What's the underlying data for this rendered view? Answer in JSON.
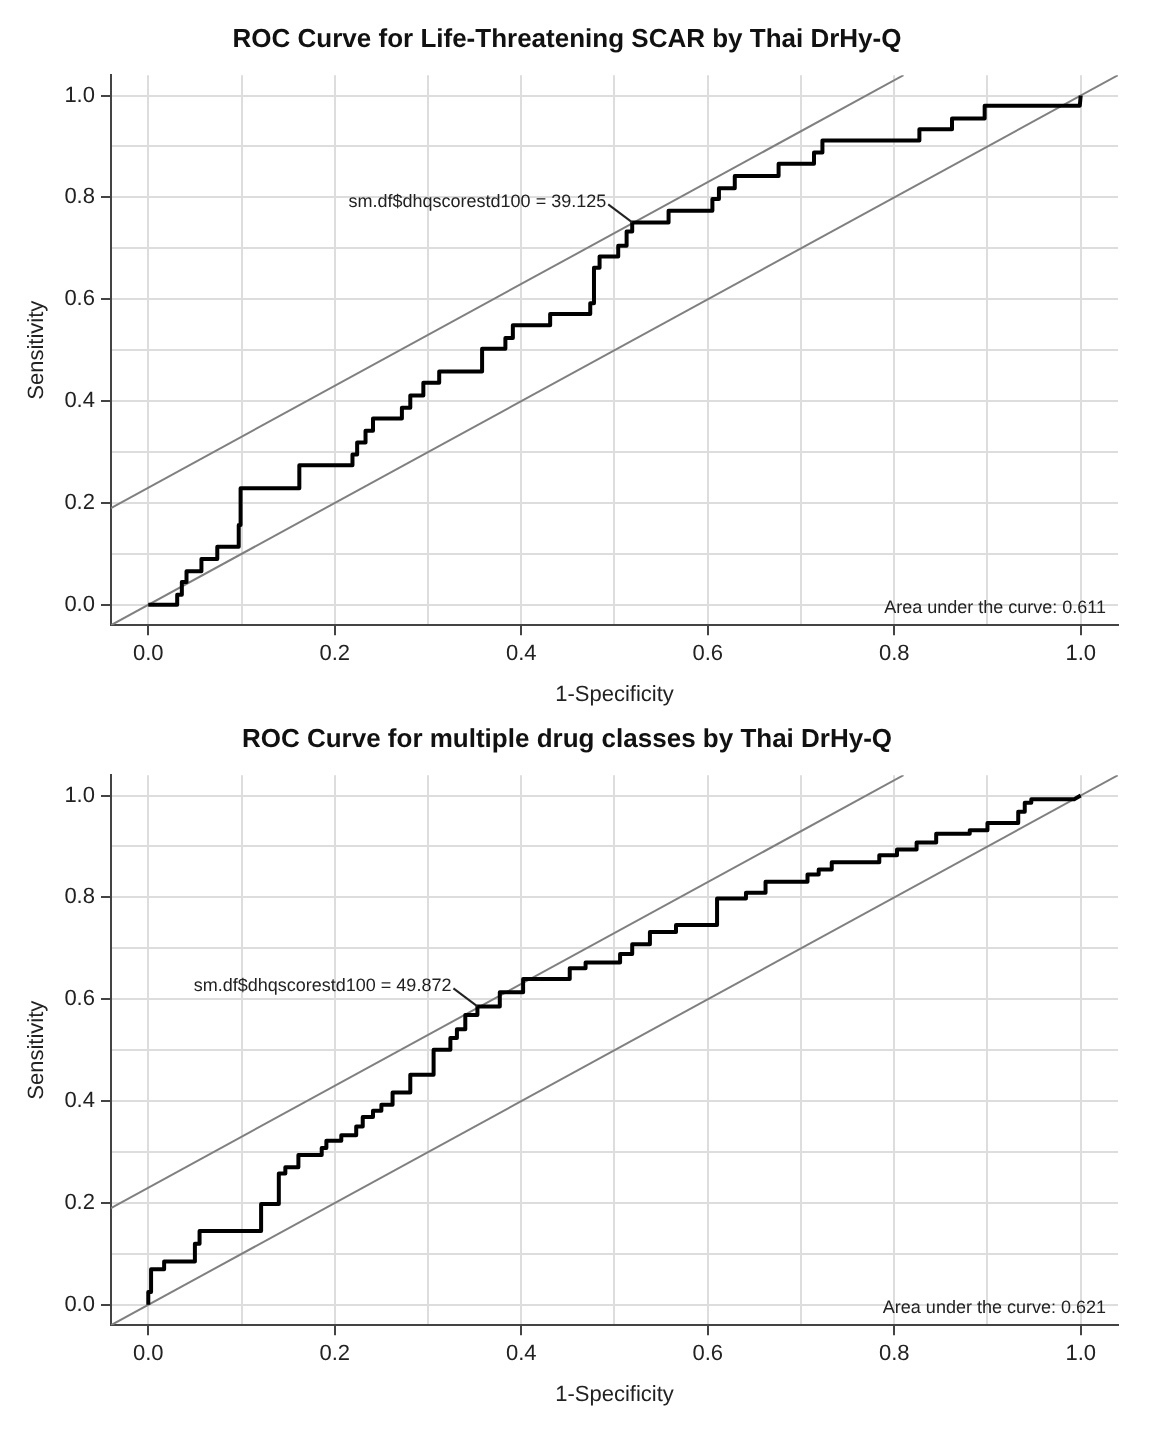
{
  "chart_data": [
    {
      "type": "line",
      "title": "ROC Curve for Life-Threatening SCAR by Thai DrHy-Q",
      "xlabel": "1-Specificity",
      "ylabel": "Sensitivity",
      "xlim": [
        -0.04,
        1.04
      ],
      "ylim": [
        -0.04,
        1.04
      ],
      "xticks": [
        {
          "value": 0,
          "label": "0.0"
        },
        {
          "value": 0.1,
          "label": null
        },
        0.2,
        {
          "value": 0.3,
          "label": null
        },
        0.4,
        {
          "value": 0.5,
          "label": null
        },
        0.6,
        {
          "value": 0.7,
          "label": null
        },
        0.8,
        {
          "value": 0.9,
          "label": null
        },
        {
          "value": 1,
          "label": "1.0"
        }
      ],
      "yticks": [
        {
          "value": 0,
          "label": "0.0"
        },
        {
          "value": 0.1,
          "label": null
        },
        0.2,
        {
          "value": 0.3,
          "label": null
        },
        0.4,
        {
          "value": 0.5,
          "label": null
        },
        0.6,
        {
          "value": 0.7,
          "label": null
        },
        0.8,
        {
          "value": 0.9,
          "label": null
        },
        {
          "value": 1,
          "label": "1.0"
        }
      ],
      "grid": true,
      "legend": false,
      "marker": "none",
      "line_style": "solid",
      "series": [
        {
          "color": "#000000",
          "x": [
            0,
            0.031,
            0.031,
            0.036,
            0.036,
            0.041,
            0.041,
            0.057,
            0.057,
            0.074,
            0.074,
            0.097,
            0.097,
            0.099,
            0.099,
            0.162,
            0.162,
            0.219,
            0.219,
            0.224,
            0.224,
            0.233,
            0.233,
            0.241,
            0.241,
            0.272,
            0.272,
            0.281,
            0.281,
            0.295,
            0.295,
            0.312,
            0.312,
            0.358,
            0.358,
            0.383,
            0.383,
            0.391,
            0.391,
            0.431,
            0.431,
            0.474,
            0.474,
            0.478,
            0.478,
            0.484,
            0.484,
            0.504,
            0.504,
            0.513,
            0.513,
            0.519,
            0.519,
            0.558,
            0.558,
            0.605,
            0.605,
            0.612,
            0.612,
            0.629,
            0.629,
            0.676,
            0.676,
            0.714,
            0.714,
            0.723,
            0.723,
            0.827,
            0.827,
            0.862,
            0.862,
            0.897,
            0.897,
            0.999,
            1.0
          ],
          "values": [
            0,
            0,
            0.02,
            0.02,
            0.045,
            0.045,
            0.066,
            0.066,
            0.09,
            0.09,
            0.114,
            0.114,
            0.157,
            0.157,
            0.229,
            0.229,
            0.274,
            0.274,
            0.295,
            0.295,
            0.319,
            0.319,
            0.342,
            0.342,
            0.366,
            0.366,
            0.387,
            0.387,
            0.411,
            0.411,
            0.436,
            0.436,
            0.458,
            0.458,
            0.503,
            0.503,
            0.524,
            0.524,
            0.549,
            0.549,
            0.571,
            0.571,
            0.592,
            0.592,
            0.662,
            0.662,
            0.684,
            0.684,
            0.705,
            0.705,
            0.733,
            0.733,
            0.751,
            0.751,
            0.774,
            0.774,
            0.797,
            0.797,
            0.818,
            0.818,
            0.842,
            0.842,
            0.866,
            0.866,
            0.888,
            0.888,
            0.912,
            0.912,
            0.934,
            0.934,
            0.955,
            0.955,
            0.98,
            0.98,
            1.0
          ]
        },
        {
          "color": "#808080",
          "x": [
            -0.04,
            1.04
          ],
          "values": [
            -0.04,
            1.04
          ]
        },
        {
          "color": "#808080",
          "x": [
            -0.04,
            0.81
          ],
          "values": [
            0.19,
            1.04
          ]
        }
      ],
      "annotations": [
        {
          "text": "sm.df$dhqscorestd100 = 39.125",
          "x": 0.519,
          "y": 0.751
        },
        "Area under the curve: 0.611"
      ]
    },
    {
      "type": "line",
      "title": "ROC Curve for multiple drug classes by Thai DrHy-Q",
      "xlabel": "1-Specificity",
      "ylabel": "Sensitivity",
      "xlim": [
        -0.04,
        1.04
      ],
      "ylim": [
        -0.04,
        1.04
      ],
      "xticks": [
        {
          "value": 0,
          "label": "0.0"
        },
        {
          "value": 0.1,
          "label": null
        },
        0.2,
        {
          "value": 0.3,
          "label": null
        },
        0.4,
        {
          "value": 0.5,
          "label": null
        },
        0.6,
        {
          "value": 0.7,
          "label": null
        },
        0.8,
        {
          "value": 0.9,
          "label": null
        },
        {
          "value": 1,
          "label": "1.0"
        }
      ],
      "yticks": [
        {
          "value": 0,
          "label": "0.0"
        },
        {
          "value": 0.1,
          "label": null
        },
        0.2,
        {
          "value": 0.3,
          "label": null
        },
        0.4,
        {
          "value": 0.5,
          "label": null
        },
        0.6,
        {
          "value": 0.7,
          "label": null
        },
        0.8,
        {
          "value": 0.9,
          "label": null
        },
        {
          "value": 1,
          "label": "1.0"
        }
      ],
      "grid": true,
      "legend": false,
      "marker": "none",
      "line_style": "solid",
      "series": [
        {
          "color": "#000000",
          "x": [
            0,
            0,
            0.003,
            0.003,
            0.017,
            0.017,
            0.05,
            0.05,
            0.055,
            0.055,
            0.121,
            0.121,
            0.14,
            0.14,
            0.147,
            0.147,
            0.161,
            0.161,
            0.186,
            0.186,
            0.191,
            0.191,
            0.207,
            0.207,
            0.223,
            0.223,
            0.23,
            0.23,
            0.241,
            0.241,
            0.25,
            0.25,
            0.262,
            0.262,
            0.281,
            0.281,
            0.306,
            0.306,
            0.324,
            0.324,
            0.331,
            0.331,
            0.34,
            0.34,
            0.353,
            0.353,
            0.377,
            0.377,
            0.402,
            0.402,
            0.452,
            0.452,
            0.469,
            0.469,
            0.506,
            0.506,
            0.519,
            0.519,
            0.538,
            0.538,
            0.566,
            0.566,
            0.61,
            0.61,
            0.641,
            0.641,
            0.662,
            0.662,
            0.707,
            0.707,
            0.719,
            0.719,
            0.733,
            0.733,
            0.784,
            0.784,
            0.803,
            0.803,
            0.824,
            0.824,
            0.845,
            0.845,
            0.881,
            0.881,
            0.9,
            0.9,
            0.933,
            0.933,
            0.94,
            0.94,
            0.947,
            0.947,
            0.993,
            1.0
          ],
          "values": [
            0,
            0.025,
            0.025,
            0.07,
            0.07,
            0.085,
            0.085,
            0.12,
            0.12,
            0.145,
            0.145,
            0.198,
            0.198,
            0.258,
            0.258,
            0.27,
            0.27,
            0.294,
            0.294,
            0.308,
            0.308,
            0.322,
            0.322,
            0.333,
            0.333,
            0.35,
            0.35,
            0.369,
            0.369,
            0.381,
            0.381,
            0.393,
            0.393,
            0.417,
            0.417,
            0.452,
            0.452,
            0.501,
            0.501,
            0.524,
            0.524,
            0.541,
            0.541,
            0.569,
            0.569,
            0.586,
            0.586,
            0.614,
            0.614,
            0.64,
            0.64,
            0.661,
            0.661,
            0.672,
            0.672,
            0.689,
            0.689,
            0.708,
            0.708,
            0.732,
            0.732,
            0.746,
            0.746,
            0.798,
            0.798,
            0.809,
            0.809,
            0.831,
            0.831,
            0.845,
            0.845,
            0.855,
            0.855,
            0.869,
            0.869,
            0.883,
            0.883,
            0.894,
            0.894,
            0.908,
            0.908,
            0.925,
            0.925,
            0.932,
            0.932,
            0.946,
            0.946,
            0.968,
            0.968,
            0.986,
            0.986,
            0.993,
            0.993,
            1.0
          ]
        },
        {
          "color": "#808080",
          "x": [
            -0.04,
            1.04
          ],
          "values": [
            -0.04,
            1.04
          ]
        },
        {
          "color": "#808080",
          "x": [
            -0.04,
            0.81
          ],
          "values": [
            0.19,
            1.04
          ]
        }
      ],
      "annotations": [
        {
          "text": "sm.df$dhqscorestd100 = 49.872",
          "x": 0.353,
          "y": 0.586
        },
        "Area under the curve: 0.621"
      ]
    }
  ]
}
